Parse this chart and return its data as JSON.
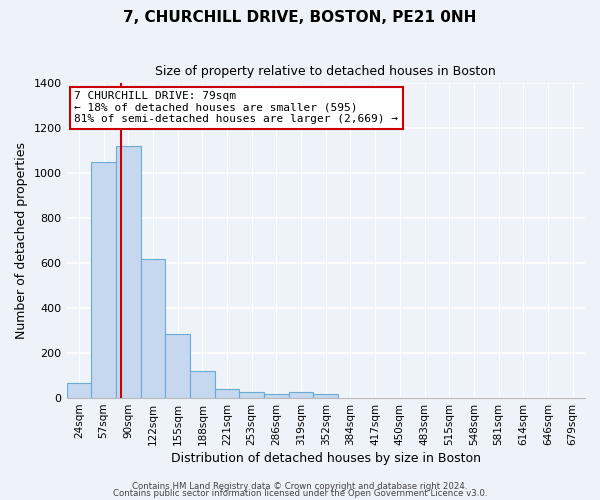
{
  "title": "7, CHURCHILL DRIVE, BOSTON, PE21 0NH",
  "subtitle": "Size of property relative to detached houses in Boston",
  "xlabel": "Distribution of detached houses by size in Boston",
  "ylabel": "Number of detached properties",
  "bar_labels": [
    "24sqm",
    "57sqm",
    "90sqm",
    "122sqm",
    "155sqm",
    "188sqm",
    "221sqm",
    "253sqm",
    "286sqm",
    "319sqm",
    "352sqm",
    "384sqm",
    "417sqm",
    "450sqm",
    "483sqm",
    "515sqm",
    "548sqm",
    "581sqm",
    "614sqm",
    "646sqm",
    "679sqm"
  ],
  "bar_values": [
    65,
    1050,
    1120,
    620,
    285,
    120,
    42,
    25,
    20,
    25,
    18,
    0,
    0,
    0,
    0,
    0,
    0,
    0,
    0,
    0,
    0
  ],
  "bar_color": "#c5d8ef",
  "bar_edge_color": "#6aaad4",
  "vline_color": "#cc0000",
  "ylim": [
    0,
    1400
  ],
  "yticks": [
    0,
    200,
    400,
    600,
    800,
    1000,
    1200,
    1400
  ],
  "annotation_text": "7 CHURCHILL DRIVE: 79sqm\n← 18% of detached houses are smaller (595)\n81% of semi-detached houses are larger (2,669) →",
  "footer1": "Contains HM Land Registry data © Crown copyright and database right 2024.",
  "footer2": "Contains public sector information licensed under the Open Government Licence v3.0.",
  "bg_color": "#eef2f9",
  "plot_bg_color": "#eef2f9",
  "grid_color": "#ffffff",
  "annotation_box_color": "#ffffff",
  "annotation_box_edge": "#cc0000",
  "vline_position": 1.72
}
